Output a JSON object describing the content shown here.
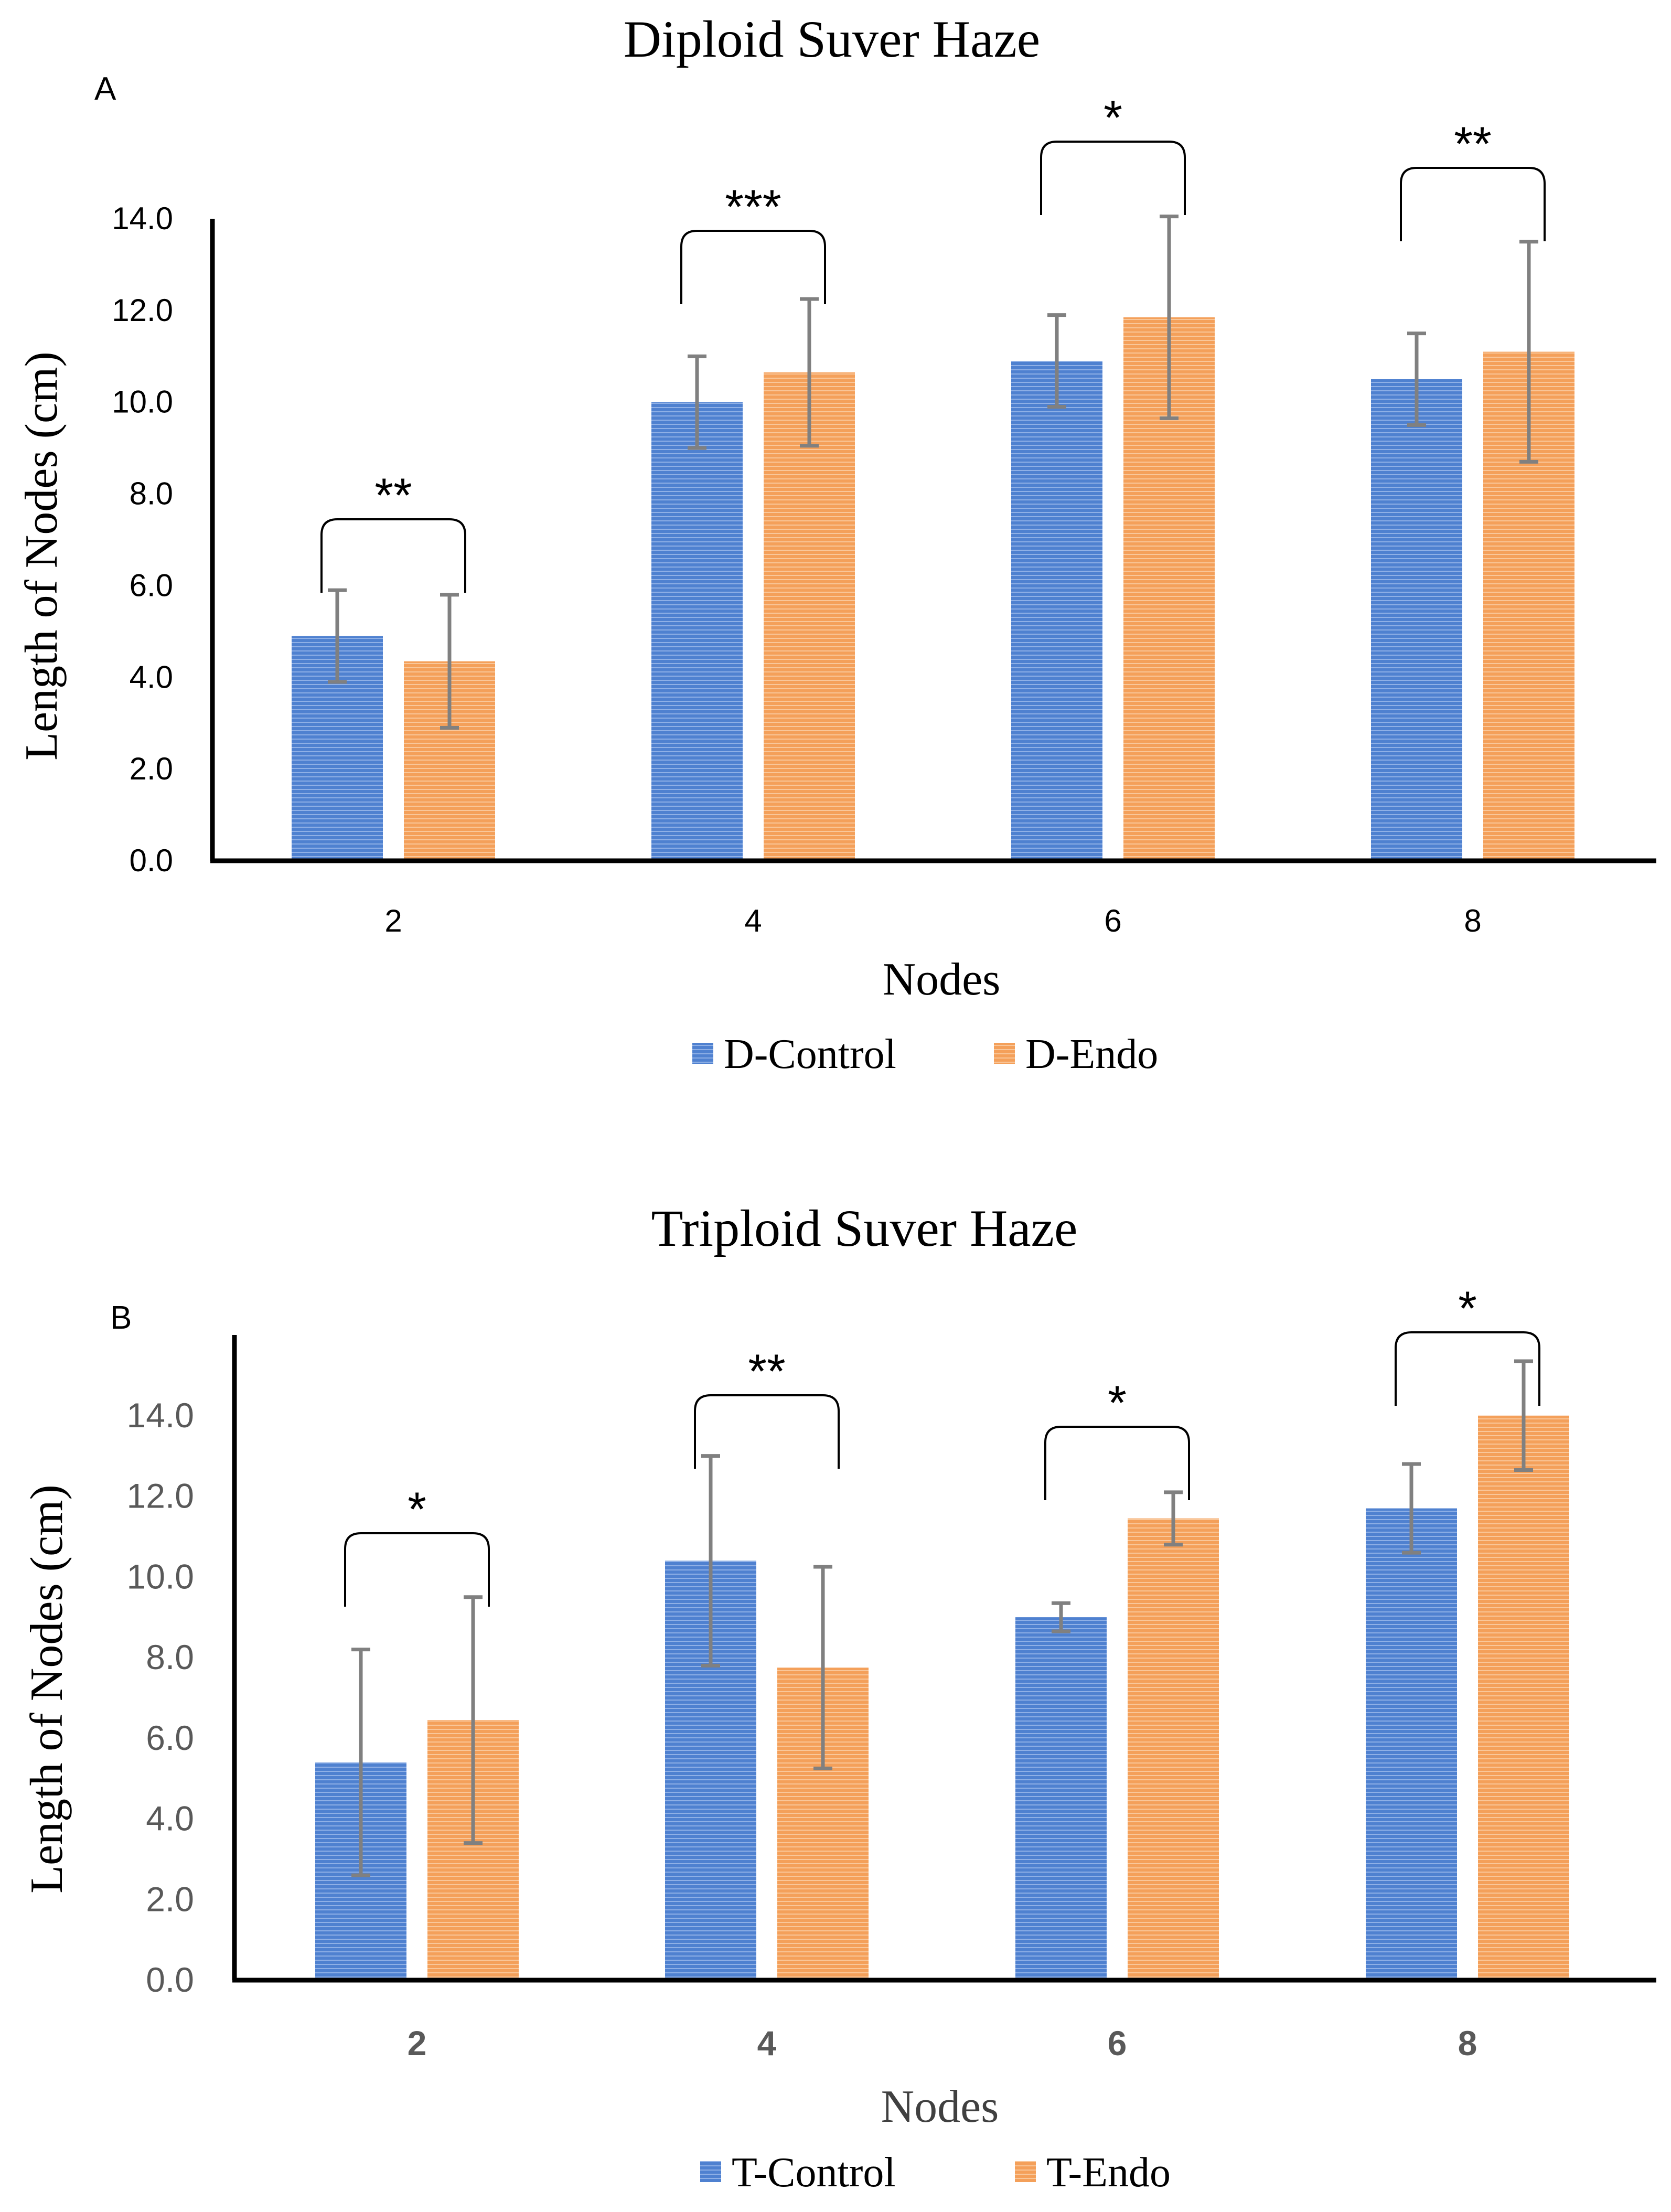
{
  "colors": {
    "control": "#4f81d0",
    "endo": "#f4a05a",
    "errorbar": "#808080",
    "axis": "#000000"
  },
  "chart_data": [
    {
      "panel": "A",
      "type": "bar",
      "title": "Diploid Suver Haze",
      "xlabel": "Nodes",
      "ylabel": "Length of Nodes (cm)",
      "ylim": [
        0,
        14
      ],
      "yticks": [
        "0.0",
        "2.0",
        "4.0",
        "6.0",
        "8.0",
        "10.0",
        "12.0",
        "14.0"
      ],
      "categories": [
        "2",
        "4",
        "6",
        "8"
      ],
      "series": [
        {
          "name": "D-Control",
          "values": [
            4.9,
            10.0,
            10.9,
            10.5
          ],
          "errors": [
            1.0,
            1.0,
            1.0,
            1.0
          ]
        },
        {
          "name": "D-Endo",
          "values": [
            4.35,
            10.65,
            11.85,
            11.1
          ],
          "errors": [
            1.45,
            1.6,
            2.2,
            2.4
          ]
        }
      ],
      "significance": [
        "**",
        "***",
        "*",
        "**"
      ],
      "legend": "bottom",
      "grid": false
    },
    {
      "panel": "B",
      "type": "bar",
      "title": "Triploid Suver Haze",
      "xlabel": "Nodes",
      "ylabel": "Length of Nodes (cm)",
      "ylim": [
        0,
        16
      ],
      "yticks": [
        "0.0",
        "2.0",
        "4.0",
        "6.0",
        "8.0",
        "10.0",
        "12.0",
        "14.0"
      ],
      "categories": [
        "2",
        "4",
        "6",
        "8"
      ],
      "series": [
        {
          "name": "T-Control",
          "values": [
            5.4,
            10.4,
            9.0,
            11.7
          ],
          "errors": [
            2.8,
            2.6,
            0.35,
            1.1
          ]
        },
        {
          "name": "T-Endo",
          "values": [
            6.45,
            7.75,
            11.45,
            14.0
          ],
          "errors": [
            3.05,
            2.5,
            0.65,
            1.35
          ]
        }
      ],
      "significance": [
        "*",
        "**",
        "*",
        "*"
      ],
      "legend": "bottom",
      "grid": false
    }
  ]
}
